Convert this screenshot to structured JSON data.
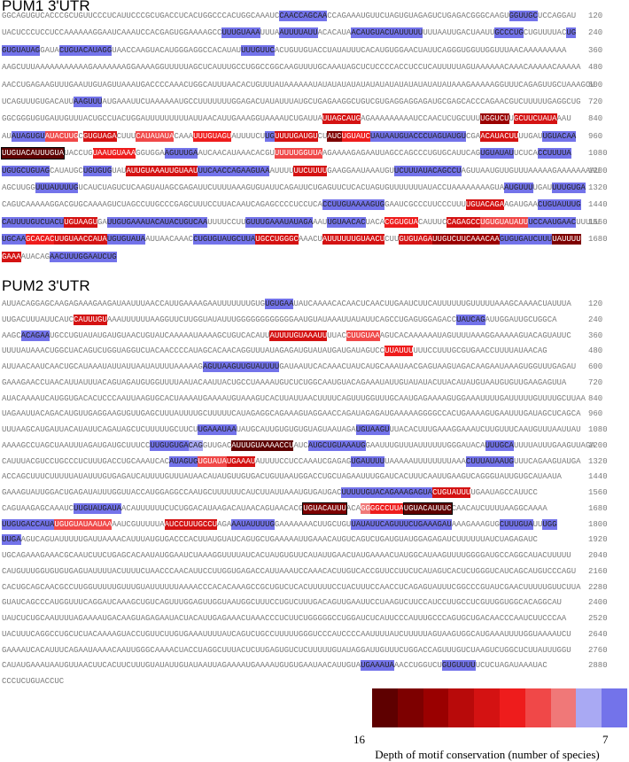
{
  "legend": {
    "colors": [
      "#5e0000",
      "#7d0000",
      "#9a0000",
      "#b80a0a",
      "#d41212",
      "#ee1c1c",
      "#f04848",
      "#f07878",
      "#a9a9f3",
      "#7373ea"
    ],
    "max_label": "16",
    "min_label": "7",
    "caption": "Depth of motif conservation (number of species)"
  },
  "pum1": {
    "title": "PUM1 3'UTR",
    "lines": [
      {
        "segments": [
          "GGCAGUGUCACCCGCUGUUCCCUCAUUCCCGCUGACCUCACUGGCCCACUGGCAAAUC",
          {
            "t": "CAACCAGCAA",
            "c": 9
          },
          "CCAGAAAUGUUCUAGUGUAGAGUCUGAGACGGGCAAGU",
          {
            "t": "GGUUGC",
            "c": 9
          },
          "UCCAGGAU"
        ],
        "num": 120
      },
      {
        "segments": [
          "UACUCCCUCCUCCAAAAAAGGAAUCAAAUCCACGAGUGGAAAAGCC",
          {
            "t": "UUUGUAAA",
            "c": 9
          },
          "UUUA",
          {
            "t": "AUUUUAUU",
            "c": 9
          },
          "ACACAUA",
          {
            "t": "ACAUGUACUAUUUUU",
            "c": 9
          },
          "UUUAAUUGACUAAUU",
          {
            "t": "GCCCUG",
            "c": 9
          },
          "CUGUUUUAC",
          {
            "t": "UG",
            "c": 9
          }
        ],
        "num": 240
      },
      {
        "segments": [
          {
            "t": "GUGUAUAG",
            "c": 9
          },
          "GAUA",
          {
            "t": "CUGUACAUAGG",
            "c": 9
          },
          "UAACCAAGUACAUGGGAGGCCACAUAU",
          {
            "t": "UUUGUUC",
            "c": 9
          },
          "ACUGUUGUACCUAUAUUUCACAUGUGGAACUAUUCAGGGUGGUUGGUUUAACAAAAAAAAA"
        ],
        "num": 360
      },
      {
        "segments": [
          "AAGCUUUAAAAAAAAAAAGAAAAAAAGGAAAAGGUUUUUAGCUCAUUUGCCUGGCCGGCAAGUUUUGCAAAUAGCUCUCCCCACCUCCUCAUUUUUAGUAAAAAACAAACAAAAACAAAAA"
        ],
        "num": 480
      },
      {
        "segments": [
          "AACCUGAGAAGUUUGAAUUGUAGUUAAAUGACCCCAAACUGGCAUUUAACACUGUUUAUAAAAAAUAUAUAUAUAUAUAUAUAUAUAUAUAUAUAAAGAAAAAGGUUUCAGAGUUGCUAAAGCU"
        ],
        "num": 600
      },
      {
        "segments": [
          "UCAGUUUGUGACAUU",
          {
            "t": "AAGUUU",
            "c": 9
          },
          "AUGAAAUUCUAAAAAAUGCCUUUUUUUGGAGACUAUAUUUAUGCUGAGAAGGCUGUCGUGAGGAGGAGAUGCGAGCACCCAGAACGUCUUUUUGAGGCUG"
        ],
        "num": 720
      },
      {
        "segments": [
          "GGCGGGUGUGAUUGUUUACUGCCUACUGGAUUUUUUUUUAUUAACAUUGAAAGGUAAAAUCUGAUUA",
          {
            "t": "UUAGCAUG",
            "c": 4
          },
          "AGAAAAAAAAAUCCAACUCUGCUUU",
          {
            "t": "UGGUCU",
            "c": 2
          },
          "U",
          {
            "t": "GCUUCUAUA",
            "c": 4
          },
          "AAU"
        ],
        "num": 840
      },
      {
        "segments": [
          "AU",
          {
            "t": "AUAGUGU",
            "c": 9
          },
          {
            "t": "AUACUUG",
            "c": 6
          },
          "C",
          {
            "t": "GUGUAGA",
            "c": 4
          },
          "CUUU",
          {
            "t": "CAUAUAUA",
            "c": 6
          },
          "CAAA",
          {
            "t": "UUUGUAGU",
            "c": 5
          },
          "AUUUUCU",
          {
            "t": "UG",
            "c": 9
          },
          {
            "t": "UUUUGAUGU",
            "c": 4
          },
          "CU",
          {
            "t": "AUC",
            "c": 1
          },
          {
            "t": "UGUAUC",
            "c": 5
          },
          {
            "t": "UAUAAUGUACCCUAGUAUGU",
            "c": 9
          },
          "CGA",
          {
            "t": "ACAUACUU",
            "c": 4
          },
          "UUGAU",
          {
            "t": "UGUACAA",
            "c": 9
          }
        ],
        "num": 960
      },
      {
        "segments": [
          {
            "t": "UUGUACAUUUGUA",
            "c": 0,
            "box": true
          },
          "UACCUG",
          {
            "t": "UAAUGUAAA",
            "c": 5
          },
          "GGUGGA",
          {
            "t": "AGUUUGA",
            "c": 9
          },
          "AUCAACAUAAACACGU",
          {
            "t": "UUUUUGGUUA",
            "c": 6
          },
          "AGAAAAGAGAAUUAGCCAGCCCUGUGCAUUCAG",
          {
            "t": "UGUAUAU",
            "c": 9
          },
          "UCUCA",
          {
            "t": "CCUUUUA",
            "c": 9
          }
        ],
        "num": 1080
      },
      {
        "segments": [
          {
            "t": "UGUGCUGUAG",
            "c": 9
          },
          "CAUAUGC",
          {
            "t": "UGUGUG",
            "c": 9
          },
          "UAU",
          {
            "t": "AUUGUAAAUUGUAAU",
            "c": 4
          },
          {
            "t": "UUCAACCAGAAGUAA",
            "c": 9
          },
          "AUUUU",
          {
            "t": "UUCUUUU",
            "c": 4
          },
          "GAAGGAAUAAAUGU",
          {
            "t": "UCUUUAUACAGCCU",
            "c": 9
          },
          "AGUUAAUGUUGUUUAAAAAGAAAAAAAAU"
        ],
        "num": 1200
      },
      {
        "segments": [
          "AGCUUGG",
          {
            "t": "UUUAUUUUG",
            "c": 9
          },
          "UCAUCUAGUCUCAAGUAUAGCGAGAUUCUUUUAAAGUGUAUUCAGAUUCUGAGUUCUCACUAGUGUUUUUUUAUACCUAAAAAAAAGUA",
          {
            "t": "AUGUUU",
            "c": 9
          },
          "UGAU",
          {
            "t": "UUUGUGA",
            "c": 9
          }
        ],
        "num": 1320
      },
      {
        "segments": [
          "CAGUCAAAAAGGACGUGCAAAAGUCUAGCCUUGCCCGAGCUUUCCUUACAAUCAGAGCCCCUCCUCA",
          {
            "t": "CCUUGUAAAAGUG",
            "c": 9
          },
          "GAAUCGCCCUUCCCUUU",
          {
            "t": "UGUACAGA",
            "c": 4
          },
          "AGAUGAA",
          {
            "t": "CUGUAUUUG",
            "c": 9
          }
        ],
        "num": 1440
      },
      {
        "segments": [
          {
            "t": "CAUUUUGUCUACU",
            "c": 9
          },
          {
            "t": "UGUAAGU",
            "c": 4
          },
          "GA",
          {
            "t": "UUGUGAAAUACAUACUGUCAA",
            "c": 9
          },
          "UUUUCCUU",
          {
            "t": "GUUUGAAAUAUAGA",
            "c": 9
          },
          "AAU",
          {
            "t": "UGUAACAC",
            "c": 9
          },
          "UACA",
          {
            "t": "CGGUGUA",
            "c": 5
          },
          "CAUUUC",
          {
            "t": "CAGAGCC",
            "c": 4
          },
          {
            "t": "UGUGUAUAUU",
            "c": 6
          },
          {
            "t": "UCCAAUGAAC",
            "c": 9
          },
          "UUUUU"
        ],
        "num": 1560
      },
      {
        "segments": [
          {
            "t": "UGCAA",
            "c": 9
          },
          {
            "t": "GCACAC",
            "c": 5
          },
          {
            "t": "UUGUAACCAUA",
            "c": 4
          },
          {
            "t": "UGUGUAUA",
            "c": 9
          },
          "AUUAACAAAC",
          {
            "t": "CUGUGUAUGCUUA",
            "c": 9
          },
          {
            "t": "UGCCUGGGC",
            "c": 4
          },
          "AAACU",
          {
            "t": "AUUUUUUGUAACU",
            "c": 4
          },
          "CUU",
          {
            "t": "GUGUAGA",
            "c": 4
          },
          {
            "t": "UUGUCUUCAAACAA",
            "c": 2
          },
          {
            "t": "GUGUGAUCUUU",
            "c": 9
          },
          {
            "t": "UAUUUU",
            "c": 1
          }
        ],
        "num": 1680
      },
      {
        "segments": [
          {
            "t": "GAAA",
            "c": 4
          },
          "AUACAG",
          {
            "t": "AACUUUGGAAUCUG",
            "c": 9
          }
        ]
      }
    ]
  },
  "pum2": {
    "title": "PUM2 3'UTR",
    "lines": [
      {
        "segments": [
          "AUUACAGGAGCAAGAGAAAGAAGAUAAUUUAACCAUUGAAAAGAAUUUUUUUGUG",
          {
            "t": "UGUGAA",
            "c": 9
          },
          "UAUCAAAACACAACUCAACUUGAAUCUUCAUUUUUUGUUUUUAAAGCAAAACUAUUUA"
        ],
        "num": 120
      },
      {
        "segments": [
          "UUGACUUUAUUCAUC",
          {
            "t": "CAUUUGU",
            "c": 4
          },
          "AAAUUUUUUAAGGUUCUUGGUAUAUUUGGGGGGGGGGGGAAUGUAUAAAUUAUAUUCAGCCUGAGUGGAGACC",
          {
            "t": "UAUCAG",
            "c": 9
          },
          "AUUGGAUUGCUGGCA"
        ],
        "num": 240
      },
      {
        "segments": [
          "AAGC",
          {
            "t": "ACAGAA",
            "c": 9
          },
          "UGCCUGUAUAUGAUGUAACUGUAUCAAAAAUAAAAGCUGUCACAUU",
          {
            "t": "AUUUUGUAAAUU",
            "c": 4
          },
          "UUAC",
          {
            "t": "CUUGUAA",
            "c": 6
          },
          "AGUCACAAAAAAUAGUUUUAAAGGAAAAAGUACAGUAUUC"
        ],
        "num": 360
      },
      {
        "segments": [
          "UUUUAUAAACUGGCUACAGUCUGGUAGGUCUACAACCCCAUAGCACAACAGGUUUAUAGAGAUGUAUAUGAUGAUAGUCC",
          {
            "t": "UUAUUU",
            "c": 5
          },
          "UUUCCUUUGCGUGAACCUUUUAUAACAG"
        ],
        "num": 480
      },
      {
        "segments": [
          "AUUAACAAUCAACUGCAUAAAUAUUAUUAAUAUUUUAAAAAG",
          {
            "t": "AGUUAAGUUGUAUUUU",
            "c": 9
          },
          "GAUAAUUCACAAACUAUCAUGCAAAUAACGAGUAAGUAGACAAGAAUAAAGUGGUUUGAGAU"
        ],
        "num": 600
      },
      {
        "segments": [
          "GAAAGAACCUAACAUUAUUUACAGUAGAUGUGGUUUUAAUACAAUUACUGCCUAAAAUGUCUCUGGCAAUGUACAGAAAUAUUGUAUAUACUUACAUAUGUAAUGUGUUGAAGAGUUA"
        ],
        "num": 720
      },
      {
        "segments": [
          "AUACAAAAUCAUGGUGACACUCCCAAUUAAGUGCACUAAAAUGAAAAUGUAAAGUCACUUAUUAACUUUUCAGUUUGGUUUGCAAUGAGAAAAGUGGAAAUUUUGAUUUUUGUUUUGCUUAA"
        ],
        "num": 840
      },
      {
        "segments": [
          "UAGAAUUACAGACAUGUUGAGGAAGUGUUGAGCUUUAUUUUGCUUUUUCAUAGAGGCAGAAAGUAGGAACCAGAUAGAGAUGAAAAAGGGGCCACUGAAAAGUGAAUUUGAUAGCUCAGCA"
        ],
        "num": 960
      },
      {
        "segments": [
          "UUUAAGCAUGAUUACAUAUUCAGAUAGCUCUUUUUGCUUCU",
          {
            "t": "UGAAAUAA",
            "c": 9
          },
          "UAUGCAUUGUGUGUGUAGUAAUAGA",
          {
            "t": "UGUAAGU",
            "c": 9
          },
          "UUACACUUUGAAAGGAAAUCUUGUUUCAAUGUUUAAUUAU"
        ],
        "num": 1080
      },
      {
        "segments": [
          "AAAAGCCUAGCUAAUUUAGAUGAUGCUUUCC",
          {
            "t": "UUGUGUGA",
            "c": 9
          },
          {
            "t": "CAG",
            "c": 8
          },
          "GUUGAC",
          {
            "t": "AUUUGUAAAACCU",
            "c": 0
          },
          "AUC",
          {
            "t": "AUGCUGUAAAUG",
            "c": 9
          },
          "GAAUUUGUUUAUUUUUUGGGAUACA",
          {
            "t": "UUUGCA",
            "c": 9
          },
          "UUUUAUUUGAAGUUAGA"
        ],
        "num": 1200
      },
      {
        "segments": [
          "CAUUUACGUCCUGCCCUCUUUGACCUGCAAAUCAC",
          {
            "t": "AUAGUG",
            "c": 9
          },
          {
            "t": "UGUAUA",
            "c": 6
          },
          {
            "t": "UGAAAU",
            "c": 4
          },
          "AUUUUCCUCCAAAUCGAGAG",
          {
            "t": "UGAUUUU",
            "c": 9
          },
          "UAAAAAUUUUUUUUAAA",
          {
            "t": "CUUUAUAAUG",
            "c": 9
          },
          "UUUCAGAAGUAUGA"
        ],
        "num": 1320
      },
      {
        "segments": [
          "ACCAGCUUUCUUUUUAUAUUUGUGAGAUCAUUUUGUUUAUAACAUAUGUUGUGACUGUUAAUGGACCUGCUAGAAUUUGGAUCACUUUCAAUUGAAGUCAGGGUAUUGUGCAUAAUA"
        ],
        "num": 1440
      },
      {
        "segments": [
          "GAAAGUAUUGGACUGAGAUAUUUGGUUACCAUGGAGGCCAAUGCUUUUUUCAUCUUAUUAAAUGUGAUGAC",
          {
            "t": "UUUUUGUACAGAAAGAGUA",
            "c": 9
          },
          {
            "t": "CUGUAUUU",
            "c": 4
          },
          "UGAAUAGCCAUUCC"
        ],
        "num": 1560
      },
      {
        "segments": [
          "CAGUAAGAGCAAAUC",
          {
            "t": "UUGUAUGAUA",
            "c": 9
          },
          "ACAUUUUUUCUCUGGACAUAAGACAUAACAGUAACACG",
          {
            "t": "UGUACAUUU",
            "c": 1,
            "box": true
          },
          "ACA",
          {
            "t": "GG",
            "c": 7
          },
          {
            "t": "GGCCUUA",
            "c": 5
          },
          {
            "t": "UGUACAUUUC",
            "c": 0,
            "box": true
          },
          "CAACAUCUUUUAAGGCAAAA"
        ],
        "num": 1680
      },
      {
        "segments": [
          {
            "t": "UUGUGACCAUA",
            "c": 9
          },
          {
            "t": "UGUGUAUAAUAA",
            "c": 6
          },
          "AAUCGUUUUUA",
          {
            "t": "AUCCUUUGCCU",
            "c": 4
          },
          "AGA",
          {
            "t": "AAUAUUUUG",
            "c": 9
          },
          "GAAAAAAACUUGCUGU",
          {
            "t": "UAUAUUCAGUUUCUGAAAGAU",
            "c": 9
          },
          "AAAGAAAGUG",
          {
            "t": "CUUUGUA",
            "c": 9
          },
          "UU",
          {
            "t": "UGG",
            "c": 9
          }
        ],
        "num": 1800
      },
      {
        "segments": [
          {
            "t": "UUGA",
            "c": 9
          },
          "AGUCAGUAUUUUUGAUUAAAACAUUUAUGUGACCCACUUAUGUAUCAGUGCUGAAAAAUUGAAACAUGUCAGUCUGAUGUAUGGAGAGAUCUUUUUUAUCUAGAGAUC"
        ],
        "num": 1920
      },
      {
        "segments": [
          "UGCAGAAAGAAACGCAAUCUUCUGAGCACAAUAUGGAAUCUAAAGGUUUUAUCACUAUGUGUUCAUAUUGAACUAUGAAAACUAUGGCAUAAGUUUUGGGGAUGCCAGGCAUACUUUUU"
        ],
        "num": 2040
      },
      {
        "segments": [
          "CAUGUUUGGUGUGUGAGUAUUUUACUUUUCUAACCCAACAUUCCUUGGUGAGACCAUUAAAUCCAAACACUUGUCACCGUUCCUUCUCAUAGUCACUCUGGGUCAUCAGCAUGUCCCAGU"
        ],
        "num": 2160
      },
      {
        "segments": [
          "CACUGCAGCAACGCCUUGGUUUUUGUUUGUAUUUUUUAAAACCCACACAAAGCCGCUGUCUCACUUUUUCCUACUUUCCAACCUCAGAGUAUUUCGGCCCGUAUCGAACUUUUUGUUCUUA"
        ],
        "num": 2280
      },
      {
        "segments": [
          "GUAUCAGCCCAUGGUUUCAGGAUCAAAGCUGUCAGUUUGGAGUUGGUAAUGGCUUUCCUGUCUUUGACAGUUGAAUUCCUAAGUCUUCCAUCCUUGCCUCGUUGGUGGCACAGGCAU"
        ],
        "num": 2400
      },
      {
        "segments": [
          "UAUCUCUGCAAUUUUAGAAAAUGACAAGUAGAGAAUACUACAUUGAGAAACUAAACCCUCUUCUGGGGGCCUGGAUCUCAUUCCCAUUUGCCCAGUGCUGACAACCCAAUCUUCCCAA"
        ],
        "num": 2520
      },
      {
        "segments": [
          "UACUUUCAGGCCUGCUCUACAAAAGUACCUGUUCUUGUGAAAUUUUAUCAGUCUGCCUUUUUGGGUCCCAUCCCCAAUUUUAUCUUUUUAGUAAGUGGCAUGAAAUUUUGGUAAAAUCU"
        ],
        "num": 2640
      },
      {
        "segments": [
          "GAAAAUCACAUUUCAGAAUAAAACAAUUGGGCAAAACUACCUAGGCUUUACUCUUGAGUGUCUCUUUUUGUAUAGGAUUGUUUCUGGACCAGUUUGUCUAAGUCUGGCUCUUAUUUGGU"
        ],
        "num": 2760
      },
      {
        "segments": [
          "CAUAUGAAAUAAUGUUAACUUCACUUCUUUGUAUAUUGUAUAAUUAGAAAAUGAAAAUGUGUGAAUAACAUUGUA",
          {
            "t": "UGAAAUA",
            "c": 9
          },
          "AACCUGGUCU",
          {
            "t": "GUGUUUU",
            "c": 9
          },
          "UCUCUAGAUAAAUAC"
        ],
        "num": 2880
      },
      {
        "segments": [
          "CCCUCUGUACCUC"
        ]
      }
    ]
  }
}
